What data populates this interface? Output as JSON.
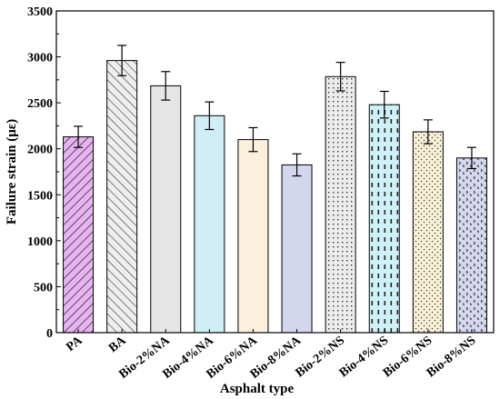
{
  "chart_data": {
    "type": "bar",
    "title": "",
    "xlabel": "Asphalt type",
    "ylabel": "Failure strain (με)",
    "ylim": [
      0,
      3500
    ],
    "yticks": [
      0,
      500,
      1000,
      1500,
      2000,
      2500,
      3000,
      3500
    ],
    "grid": false,
    "legend": "none",
    "categories": [
      "PA",
      "BA",
      "Bio-2%NA",
      "Bio-4%NA",
      "Bio-6%NA",
      "Bio-8%NA",
      "Bio-2%NS",
      "Bio-4%NS",
      "Bio-6%NS",
      "Bio-8%NS"
    ],
    "values": [
      2130,
      2960,
      2685,
      2360,
      2100,
      1825,
      2785,
      2480,
      2185,
      1900
    ],
    "errors": [
      115,
      165,
      155,
      150,
      130,
      120,
      155,
      145,
      130,
      115
    ],
    "colors": [
      "#e8b4f0",
      "#eeeeee",
      "#e6e6e6",
      "#cfeef5",
      "#fbf0dc",
      "#d4d6ee",
      "#ececec",
      "#cdf1f6",
      "#fbf1d8",
      "#d6d8f0"
    ],
    "patterns": [
      "diag-forward",
      "diag-back",
      "none",
      "none",
      "none",
      "none",
      "grid-dots",
      "dashes",
      "dots",
      "zigzag"
    ]
  }
}
